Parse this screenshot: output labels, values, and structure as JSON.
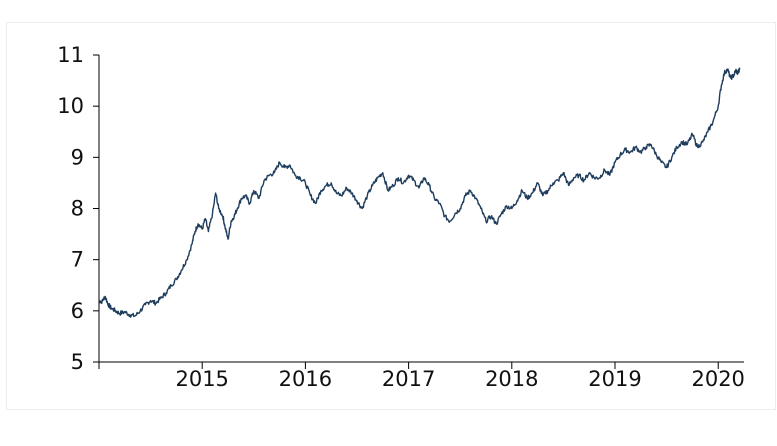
{
  "chart_data": {
    "type": "line",
    "title": "",
    "xlabel": "",
    "ylabel": "",
    "xlim": [
      2014.0,
      2020.25
    ],
    "ylim": [
      5,
      11
    ],
    "grid": false,
    "legend": "none",
    "x_ticks": [
      {
        "value": 2015,
        "label": "2015"
      },
      {
        "value": 2016,
        "label": "2016"
      },
      {
        "value": 2017,
        "label": "2017"
      },
      {
        "value": 2018,
        "label": "2018"
      },
      {
        "value": 2019,
        "label": "2019"
      },
      {
        "value": 2020,
        "label": "2020"
      }
    ],
    "y_ticks": [
      {
        "value": 5,
        "label": "5"
      },
      {
        "value": 6,
        "label": "6"
      },
      {
        "value": 7,
        "label": "7"
      },
      {
        "value": 8,
        "label": "8"
      },
      {
        "value": 9,
        "label": "9"
      },
      {
        "value": 10,
        "label": "10"
      },
      {
        "value": 11,
        "label": "11"
      }
    ],
    "line_color": "#1f3d5c",
    "series": [
      {
        "x": [
          2014.0,
          2014.03,
          2014.06,
          2014.09,
          2014.12,
          2014.16,
          2014.2,
          2014.25,
          2014.3,
          2014.35,
          2014.4,
          2014.45,
          2014.5,
          2014.55,
          2014.6,
          2014.65,
          2014.7,
          2014.75,
          2014.8,
          2014.85,
          2014.9,
          2014.93,
          2014.96,
          2015.0,
          2015.03,
          2015.06,
          2015.1,
          2015.13,
          2015.16,
          2015.2,
          2015.22,
          2015.25,
          2015.28,
          2015.31,
          2015.34,
          2015.38,
          2015.42,
          2015.46,
          2015.5,
          2015.55,
          2015.6,
          2015.65,
          2015.7,
          2015.75,
          2015.8,
          2015.85,
          2015.9,
          2015.95,
          2016.0,
          2016.05,
          2016.1,
          2016.15,
          2016.2,
          2016.25,
          2016.3,
          2016.35,
          2016.4,
          2016.45,
          2016.5,
          2016.55,
          2016.6,
          2016.65,
          2016.7,
          2016.75,
          2016.8,
          2016.85,
          2016.9,
          2016.95,
          2017.0,
          2017.05,
          2017.1,
          2017.15,
          2017.2,
          2017.25,
          2017.3,
          2017.35,
          2017.4,
          2017.45,
          2017.5,
          2017.55,
          2017.6,
          2017.65,
          2017.7,
          2017.75,
          2017.8,
          2017.85,
          2017.9,
          2017.95,
          2018.0,
          2018.05,
          2018.1,
          2018.15,
          2018.2,
          2018.25,
          2018.3,
          2018.35,
          2018.4,
          2018.45,
          2018.5,
          2018.55,
          2018.6,
          2018.65,
          2018.7,
          2018.75,
          2018.8,
          2018.85,
          2018.9,
          2018.95,
          2019.0,
          2019.05,
          2019.1,
          2019.15,
          2019.2,
          2019.25,
          2019.3,
          2019.35,
          2019.4,
          2019.45,
          2019.5,
          2019.55,
          2019.6,
          2019.65,
          2019.7,
          2019.75,
          2019.8,
          2019.85,
          2019.9,
          2019.95,
          2020.0,
          2020.03,
          2020.06,
          2020.09,
          2020.12,
          2020.15,
          2020.17,
          2020.19,
          2020.21
        ],
        "y": [
          6.2,
          6.18,
          6.28,
          6.12,
          6.05,
          6.0,
          5.95,
          5.98,
          5.92,
          5.9,
          6.0,
          6.12,
          6.2,
          6.15,
          6.25,
          6.35,
          6.5,
          6.62,
          6.8,
          7.0,
          7.3,
          7.55,
          7.7,
          7.6,
          7.8,
          7.55,
          7.9,
          8.3,
          8.0,
          7.85,
          7.65,
          7.4,
          7.75,
          7.85,
          8.0,
          8.2,
          8.25,
          8.1,
          8.35,
          8.2,
          8.55,
          8.65,
          8.7,
          8.9,
          8.8,
          8.85,
          8.65,
          8.6,
          8.5,
          8.25,
          8.1,
          8.35,
          8.45,
          8.5,
          8.3,
          8.25,
          8.4,
          8.3,
          8.15,
          8.0,
          8.25,
          8.45,
          8.6,
          8.7,
          8.35,
          8.45,
          8.6,
          8.5,
          8.65,
          8.55,
          8.4,
          8.6,
          8.45,
          8.2,
          8.1,
          7.85,
          7.75,
          7.9,
          8.0,
          8.25,
          8.35,
          8.2,
          8.0,
          7.75,
          7.85,
          7.7,
          7.9,
          8.05,
          8.0,
          8.15,
          8.35,
          8.2,
          8.3,
          8.5,
          8.25,
          8.35,
          8.5,
          8.55,
          8.7,
          8.45,
          8.6,
          8.65,
          8.55,
          8.7,
          8.6,
          8.6,
          8.75,
          8.65,
          8.9,
          9.05,
          9.15,
          9.1,
          9.2,
          9.1,
          9.2,
          9.25,
          9.05,
          8.9,
          8.8,
          9.0,
          9.2,
          9.3,
          9.25,
          9.45,
          9.2,
          9.3,
          9.5,
          9.7,
          10.0,
          10.4,
          10.65,
          10.72,
          10.55,
          10.6,
          10.7,
          10.65,
          10.72
        ]
      }
    ]
  }
}
